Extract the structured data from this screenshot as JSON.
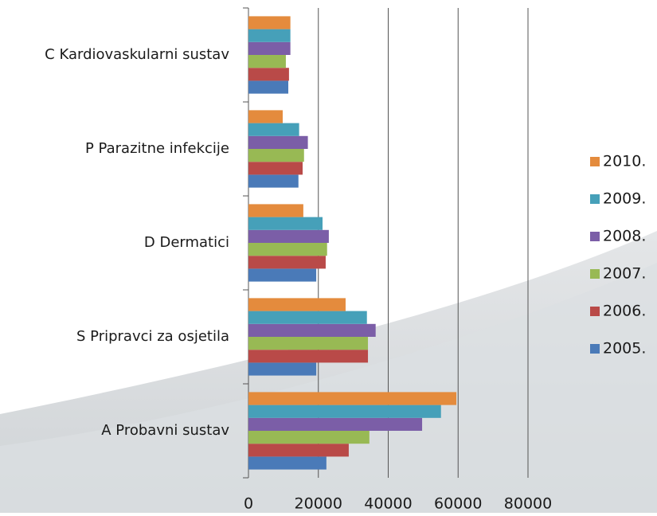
{
  "chart_data": {
    "type": "bar",
    "orientation": "horizontal",
    "categories": [
      "C Kardiovaskularni sustav",
      "P Parazitne infekcije",
      "D Dermatici",
      "S Pripravci za osjetila",
      "A Probavni sustav"
    ],
    "series": [
      {
        "name": "2005.",
        "color": "#4a7ab8",
        "values": [
          11400,
          14300,
          19400,
          19400,
          22300
        ]
      },
      {
        "name": "2006.",
        "color": "#b94a48",
        "values": [
          11600,
          15500,
          22100,
          34200,
          28700
        ]
      },
      {
        "name": "2007.",
        "color": "#98b954",
        "values": [
          10700,
          15900,
          22500,
          34200,
          34600
        ]
      },
      {
        "name": "2008.",
        "color": "#7b5ea7",
        "values": [
          12000,
          17000,
          23000,
          36400,
          49700
        ]
      },
      {
        "name": "2009.",
        "color": "#46a0b9",
        "values": [
          12000,
          14500,
          21200,
          33900,
          55100
        ]
      },
      {
        "name": "2010.",
        "color": "#e48b3d",
        "values": [
          12000,
          9800,
          15700,
          27800,
          59500
        ]
      }
    ],
    "xlim": [
      0,
      80000
    ],
    "xticks": [
      0,
      20000,
      40000,
      60000,
      80000
    ],
    "grid": true,
    "legend": "right"
  }
}
